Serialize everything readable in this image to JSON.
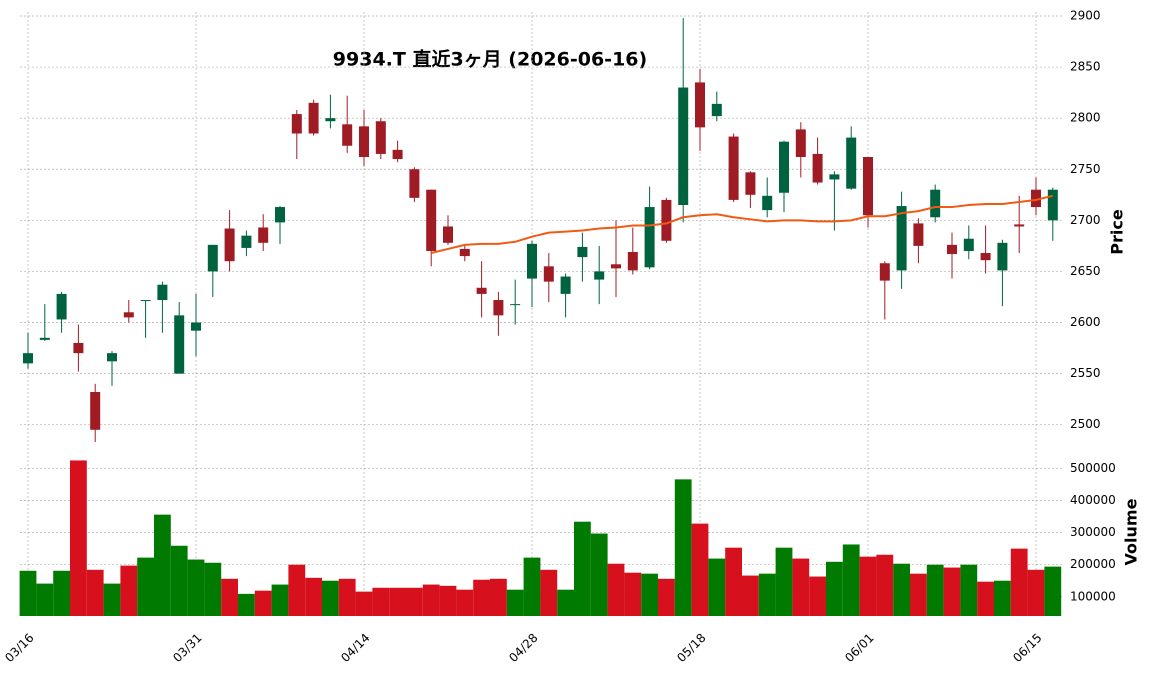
{
  "chart_data": {
    "type": "candlestick",
    "title": "9934.T  直近3ヶ月  (2026-06-16)",
    "categories": [
      "03/16",
      null,
      null,
      null,
      null,
      null,
      null,
      null,
      null,
      null,
      "03/31",
      null,
      null,
      null,
      null,
      null,
      null,
      null,
      null,
      null,
      "04/14",
      null,
      null,
      null,
      null,
      null,
      null,
      null,
      null,
      null,
      "04/28",
      null,
      null,
      null,
      null,
      null,
      null,
      null,
      null,
      null,
      "05/18",
      null,
      null,
      null,
      null,
      null,
      null,
      null,
      null,
      null,
      "06/01",
      null,
      null,
      null,
      null,
      null,
      null,
      null,
      null,
      null,
      "06/15",
      null
    ],
    "open": [
      2560,
      2583,
      2603,
      2580,
      2532,
      2562,
      2610,
      2621,
      2622,
      2550,
      2592,
      2650,
      2692,
      2673,
      2693,
      2698,
      2804,
      2815,
      2797,
      2794,
      2792,
      2797,
      2769,
      2750,
      2730,
      2694,
      2672,
      2634,
      2622,
      2617,
      2643,
      2655,
      2628,
      2664,
      2642,
      2657,
      2669,
      2654,
      2720,
      2715,
      2835,
      2802,
      2782,
      2747,
      2710,
      2727,
      2789,
      2765,
      2740,
      2731,
      2762,
      2658,
      2651,
      2697,
      2703,
      2676,
      2670,
      2668,
      2651,
      2696,
      2730,
      2700
    ],
    "high": [
      2590,
      2618,
      2630,
      2598,
      2540,
      2572,
      2622,
      2622,
      2640,
      2620,
      2628,
      2676,
      2710,
      2690,
      2706,
      2714,
      2808,
      2818,
      2823,
      2822,
      2808,
      2800,
      2778,
      2752,
      2730,
      2705,
      2675,
      2660,
      2630,
      2642,
      2680,
      2668,
      2648,
      2688,
      2675,
      2700,
      2693,
      2733,
      2722,
      2898,
      2848,
      2826,
      2785,
      2748,
      2742,
      2778,
      2796,
      2781,
      2748,
      2792,
      2762,
      2660,
      2728,
      2702,
      2735,
      2688,
      2695,
      2695,
      2681,
      2724,
      2742,
      2732
    ],
    "low": [
      2555,
      2582,
      2590,
      2552,
      2483,
      2538,
      2600,
      2585,
      2590,
      2550,
      2567,
      2625,
      2650,
      2665,
      2670,
      2677,
      2760,
      2783,
      2790,
      2766,
      2753,
      2760,
      2757,
      2718,
      2655,
      2676,
      2660,
      2605,
      2587,
      2598,
      2615,
      2620,
      2605,
      2640,
      2618,
      2625,
      2647,
      2652,
      2678,
      2698,
      2768,
      2797,
      2718,
      2712,
      2703,
      2708,
      2742,
      2735,
      2690,
      2730,
      2693,
      2603,
      2633,
      2658,
      2698,
      2643,
      2662,
      2648,
      2616,
      2668,
      2705,
      2680
    ],
    "close": [
      2570,
      2585,
      2628,
      2570,
      2495,
      2570,
      2605,
      2622,
      2637,
      2607,
      2600,
      2676,
      2660,
      2685,
      2678,
      2713,
      2785,
      2785,
      2800,
      2773,
      2762,
      2765,
      2760,
      2722,
      2670,
      2678,
      2665,
      2628,
      2607,
      2618,
      2677,
      2640,
      2645,
      2674,
      2650,
      2653,
      2651,
      2713,
      2680,
      2830,
      2791,
      2814,
      2720,
      2725,
      2724,
      2777,
      2762,
      2737,
      2745,
      2781,
      2705,
      2641,
      2714,
      2675,
      2730,
      2667,
      2682,
      2661,
      2678,
      2694,
      2713,
      2730
    ],
    "ma": {
      "color": "#f05a14",
      "values": [
        null,
        null,
        null,
        null,
        null,
        null,
        null,
        null,
        null,
        null,
        null,
        null,
        null,
        null,
        null,
        null,
        null,
        null,
        null,
        null,
        null,
        null,
        null,
        null,
        2668,
        2672,
        2676,
        2677,
        2677,
        2679,
        2684,
        2688,
        2689,
        2690,
        2692,
        2693,
        2695,
        2695,
        2697,
        2703,
        2705,
        2706,
        2703,
        2701,
        2699,
        2700,
        2700,
        2699,
        2699,
        2700,
        2704,
        2704,
        2707,
        2709,
        2713,
        2713,
        2715,
        2716,
        2716,
        2718,
        2720,
        2724
      ]
    },
    "volume": [
      181000,
      141000,
      181000,
      525000,
      184000,
      141000,
      197000,
      222000,
      356000,
      259000,
      216000,
      206000,
      156000,
      109000,
      119000,
      138000,
      200000,
      159000,
      150000,
      156000,
      116000,
      128000,
      128000,
      128000,
      138000,
      134000,
      122000,
      153000,
      156000,
      122000,
      222000,
      184000,
      122000,
      334000,
      297000,
      203000,
      175000,
      172000,
      156000,
      466000,
      328000,
      219000,
      253000,
      166000,
      172000,
      253000,
      219000,
      163000,
      209000,
      263000,
      225000,
      231000,
      203000,
      172000,
      200000,
      191000,
      200000,
      147000,
      150000,
      250000,
      184000,
      194000
    ],
    "up_color": "#006340",
    "down_color": "#a01c24",
    "volume_up_color": "#007a00",
    "volume_down_color": "#d6101c",
    "ylabel": "Price",
    "ylim": [
      2485,
      2900
    ],
    "yticks": [
      2500,
      2550,
      2600,
      2650,
      2700,
      2750,
      2800,
      2850,
      2900
    ],
    "volume_label": "Volume",
    "volume_ylim": [
      40000,
      570000
    ],
    "volume_ticks": [
      100000,
      200000,
      300000,
      400000,
      500000
    ],
    "grid": true
  }
}
